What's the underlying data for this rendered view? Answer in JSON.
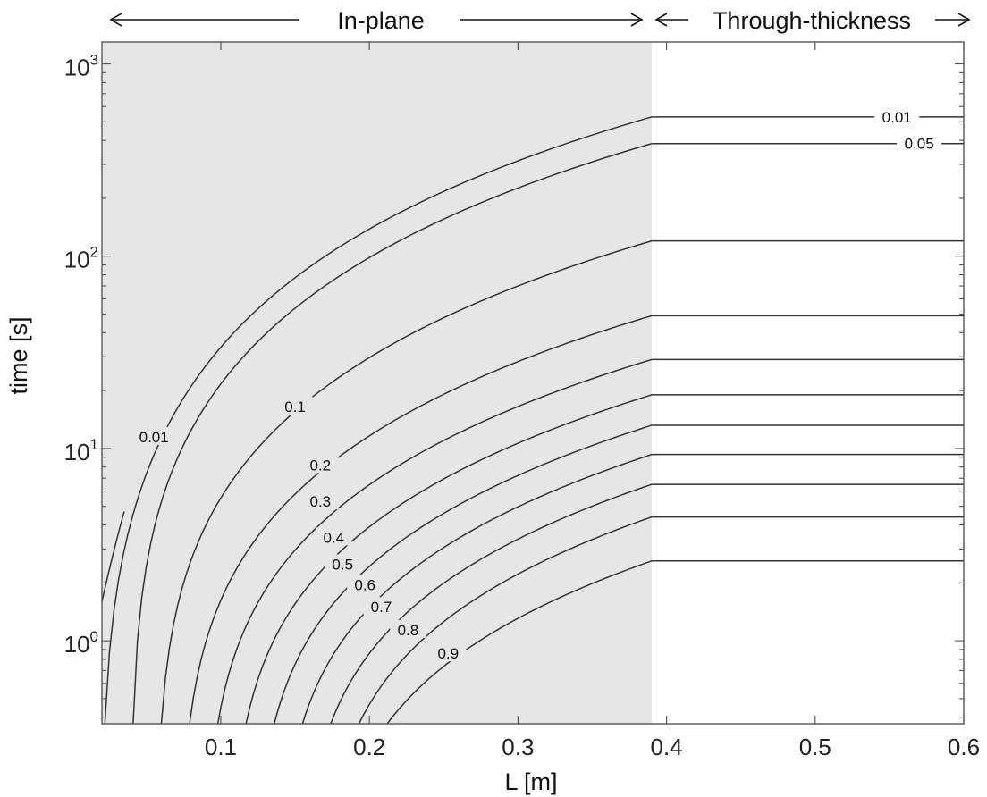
{
  "chart_data": {
    "type": "line",
    "title": "",
    "xlabel": "L [m]",
    "ylabel": "time [s]",
    "xlim": [
      0.02,
      0.6
    ],
    "ylim": [
      0.37,
      1300
    ],
    "yscale": "log",
    "x_ticks": [
      "0.1",
      "0.2",
      "0.3",
      "0.4",
      "0.5",
      "0.6"
    ],
    "y_ticks": [
      {
        "base": "10",
        "exp": "0"
      },
      {
        "base": "10",
        "exp": "1"
      },
      {
        "base": "10",
        "exp": "2"
      },
      {
        "base": "10",
        "exp": "3"
      }
    ],
    "grid": false,
    "shaded_region": {
      "x_start": 0.02,
      "x_end": 0.39,
      "color": "#e6e6e6"
    },
    "regions": [
      {
        "label": "In-plane"
      },
      {
        "label": "Through-thickness"
      }
    ],
    "transition_x": 0.39,
    "contours": [
      {
        "name": "0.01",
        "plateau_time": 530,
        "label": "0.01"
      },
      {
        "name": "0.05",
        "plateau_time": 385,
        "label": "0.05"
      },
      {
        "name": "0.1",
        "plateau_time": 120,
        "label": "0.1"
      },
      {
        "name": "0.2",
        "plateau_time": 49,
        "label": "0.2"
      },
      {
        "name": "0.3",
        "plateau_time": 29,
        "label": "0.3"
      },
      {
        "name": "0.4",
        "plateau_time": 19,
        "label": "0.4"
      },
      {
        "name": "0.5",
        "plateau_time": 13.2,
        "label": "0.5"
      },
      {
        "name": "0.6",
        "plateau_time": 9.3,
        "label": "0.6"
      },
      {
        "name": "0.7",
        "plateau_time": 6.5,
        "label": "0.7"
      },
      {
        "name": "0.8",
        "plateau_time": 4.4,
        "label": "0.8"
      },
      {
        "name": "0.9",
        "plateau_time": 2.6,
        "label": "0.9"
      }
    ],
    "side_contour": {
      "name": "0.01-near",
      "x_start": 0.02,
      "x_end": 0.035
    }
  }
}
